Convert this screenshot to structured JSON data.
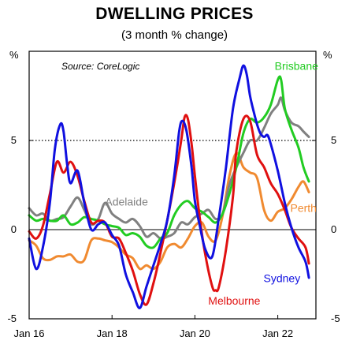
{
  "chart_data": {
    "type": "line",
    "title": "DWELLING PRICES",
    "subtitle": "(3 month % change)",
    "source": "Source: CoreLogic",
    "ylabel_left": "%",
    "ylabel_right": "%",
    "ylim": [
      -5,
      10
    ],
    "yticks": [
      -5,
      0,
      5
    ],
    "xlim": [
      2016.0,
      2022.92
    ],
    "xticks": [
      {
        "x": 2016,
        "label": "Jan 16"
      },
      {
        "x": 2018,
        "label": "Jan 18"
      },
      {
        "x": 2020,
        "label": "Jan 20"
      },
      {
        "x": 2022,
        "label": "Jan 22"
      }
    ],
    "reference_line": 5,
    "colors": {
      "Sydney": "#1010e0",
      "Melbourne": "#e01010",
      "Brisbane": "#22cc22",
      "Perth": "#f08a30",
      "Adelaide": "#808080"
    },
    "series": [
      {
        "name": "Sydney",
        "points": [
          [
            2016.0,
            -0.5
          ],
          [
            2016.17,
            -2.2
          ],
          [
            2016.33,
            -1.0
          ],
          [
            2016.5,
            1.5
          ],
          [
            2016.62,
            4.5
          ],
          [
            2016.75,
            5.9
          ],
          [
            2016.83,
            5.5
          ],
          [
            2016.92,
            3.6
          ],
          [
            2017.0,
            2.6
          ],
          [
            2017.17,
            3.3
          ],
          [
            2017.33,
            1.5
          ],
          [
            2017.5,
            0.0
          ],
          [
            2017.67,
            0.3
          ],
          [
            2017.83,
            0.4
          ],
          [
            2018.0,
            -0.3
          ],
          [
            2018.17,
            -0.9
          ],
          [
            2018.33,
            -2.5
          ],
          [
            2018.5,
            -3.5
          ],
          [
            2018.67,
            -4.4
          ],
          [
            2018.83,
            -3.2
          ],
          [
            2019.0,
            -2.0
          ],
          [
            2019.17,
            -0.8
          ],
          [
            2019.33,
            0.5
          ],
          [
            2019.5,
            3.0
          ],
          [
            2019.62,
            5.5
          ],
          [
            2019.7,
            6.1
          ],
          [
            2019.8,
            5.5
          ],
          [
            2019.92,
            3.5
          ],
          [
            2020.0,
            1.6
          ],
          [
            2020.12,
            0.2
          ],
          [
            2020.25,
            -1.1
          ],
          [
            2020.42,
            -1.5
          ],
          [
            2020.58,
            0.7
          ],
          [
            2020.75,
            3.5
          ],
          [
            2020.92,
            6.8
          ],
          [
            2021.08,
            8.5
          ],
          [
            2021.17,
            9.2
          ],
          [
            2021.25,
            8.7
          ],
          [
            2021.33,
            7.5
          ],
          [
            2021.42,
            6.6
          ],
          [
            2021.5,
            5.9
          ],
          [
            2021.58,
            5.4
          ],
          [
            2021.67,
            5.2
          ],
          [
            2021.75,
            5.3
          ],
          [
            2021.83,
            4.8
          ],
          [
            2022.0,
            3.3
          ],
          [
            2022.17,
            1.5
          ],
          [
            2022.33,
            0.1
          ],
          [
            2022.5,
            -1.0
          ],
          [
            2022.67,
            -1.8
          ],
          [
            2022.75,
            -2.7
          ]
        ]
      },
      {
        "name": "Melbourne",
        "points": [
          [
            2016.0,
            -0.1
          ],
          [
            2016.17,
            -0.5
          ],
          [
            2016.33,
            0.2
          ],
          [
            2016.5,
            2.0
          ],
          [
            2016.67,
            3.8
          ],
          [
            2016.83,
            3.2
          ],
          [
            2017.0,
            3.8
          ],
          [
            2017.17,
            3.0
          ],
          [
            2017.33,
            1.6
          ],
          [
            2017.5,
            0.4
          ],
          [
            2017.67,
            0.5
          ],
          [
            2017.83,
            0.4
          ],
          [
            2018.0,
            -0.4
          ],
          [
            2018.17,
            -0.5
          ],
          [
            2018.33,
            -1.3
          ],
          [
            2018.5,
            -2.3
          ],
          [
            2018.67,
            -3.6
          ],
          [
            2018.83,
            -4.2
          ],
          [
            2019.0,
            -3.0
          ],
          [
            2019.17,
            -1.3
          ],
          [
            2019.33,
            0.5
          ],
          [
            2019.5,
            2.6
          ],
          [
            2019.67,
            5.0
          ],
          [
            2019.75,
            6.3
          ],
          [
            2019.83,
            6.2
          ],
          [
            2019.92,
            4.8
          ],
          [
            2020.0,
            3.0
          ],
          [
            2020.12,
            0.6
          ],
          [
            2020.25,
            -1.4
          ],
          [
            2020.42,
            -3.2
          ],
          [
            2020.5,
            -3.4
          ],
          [
            2020.58,
            -3.2
          ],
          [
            2020.75,
            -1.1
          ],
          [
            2020.92,
            1.9
          ],
          [
            2021.0,
            4.4
          ],
          [
            2021.17,
            6.2
          ],
          [
            2021.33,
            6.1
          ],
          [
            2021.5,
            4.2
          ],
          [
            2021.67,
            3.5
          ],
          [
            2021.83,
            2.6
          ],
          [
            2022.0,
            2.0
          ],
          [
            2022.17,
            1.1
          ],
          [
            2022.33,
            0.1
          ],
          [
            2022.5,
            -0.5
          ],
          [
            2022.67,
            -1.0
          ],
          [
            2022.75,
            -1.9
          ]
        ]
      },
      {
        "name": "Brisbane",
        "points": [
          [
            2016.0,
            0.8
          ],
          [
            2016.17,
            0.5
          ],
          [
            2016.33,
            0.6
          ],
          [
            2016.5,
            0.5
          ],
          [
            2016.67,
            0.5
          ],
          [
            2016.83,
            0.8
          ],
          [
            2017.0,
            0.3
          ],
          [
            2017.17,
            0.4
          ],
          [
            2017.33,
            0.7
          ],
          [
            2017.5,
            0.6
          ],
          [
            2017.67,
            0.5
          ],
          [
            2017.83,
            0.3
          ],
          [
            2018.0,
            0.2
          ],
          [
            2018.17,
            0.1
          ],
          [
            2018.33,
            -0.3
          ],
          [
            2018.5,
            -0.2
          ],
          [
            2018.67,
            -0.4
          ],
          [
            2018.83,
            -0.9
          ],
          [
            2019.0,
            -1.0
          ],
          [
            2019.17,
            -0.5
          ],
          [
            2019.33,
            -0.2
          ],
          [
            2019.5,
            0.8
          ],
          [
            2019.67,
            1.4
          ],
          [
            2019.83,
            1.6
          ],
          [
            2020.0,
            1.2
          ],
          [
            2020.17,
            1.0
          ],
          [
            2020.33,
            0.7
          ],
          [
            2020.5,
            0.4
          ],
          [
            2020.67,
            0.9
          ],
          [
            2020.83,
            2.0
          ],
          [
            2021.0,
            3.5
          ],
          [
            2021.17,
            5.4
          ],
          [
            2021.33,
            6.2
          ],
          [
            2021.5,
            6.0
          ],
          [
            2021.67,
            6.3
          ],
          [
            2021.83,
            7.0
          ],
          [
            2022.0,
            8.4
          ],
          [
            2022.08,
            8.4
          ],
          [
            2022.17,
            6.8
          ],
          [
            2022.33,
            5.6
          ],
          [
            2022.5,
            4.6
          ],
          [
            2022.62,
            3.5
          ],
          [
            2022.75,
            2.7
          ]
        ]
      },
      {
        "name": "Perth",
        "points": [
          [
            2016.0,
            -0.6
          ],
          [
            2016.17,
            -0.9
          ],
          [
            2016.33,
            -1.6
          ],
          [
            2016.5,
            -1.7
          ],
          [
            2016.67,
            -1.5
          ],
          [
            2016.83,
            -1.5
          ],
          [
            2017.0,
            -1.4
          ],
          [
            2017.17,
            -1.8
          ],
          [
            2017.33,
            -1.7
          ],
          [
            2017.5,
            -0.6
          ],
          [
            2017.67,
            -0.5
          ],
          [
            2017.83,
            -0.6
          ],
          [
            2018.0,
            -0.7
          ],
          [
            2018.17,
            -1.0
          ],
          [
            2018.33,
            -1.4
          ],
          [
            2018.5,
            -1.6
          ],
          [
            2018.67,
            -2.2
          ],
          [
            2018.83,
            -2.0
          ],
          [
            2019.0,
            -2.2
          ],
          [
            2019.17,
            -1.8
          ],
          [
            2019.33,
            -1.0
          ],
          [
            2019.5,
            -0.8
          ],
          [
            2019.67,
            -1.0
          ],
          [
            2019.83,
            -0.5
          ],
          [
            2020.0,
            0.2
          ],
          [
            2020.17,
            0.4
          ],
          [
            2020.33,
            -0.4
          ],
          [
            2020.5,
            -0.6
          ],
          [
            2020.67,
            0.8
          ],
          [
            2020.83,
            3.0
          ],
          [
            2021.0,
            4.3
          ],
          [
            2021.17,
            3.5
          ],
          [
            2021.33,
            3.2
          ],
          [
            2021.5,
            2.9
          ],
          [
            2021.67,
            1.1
          ],
          [
            2021.83,
            0.5
          ],
          [
            2022.0,
            1.0
          ],
          [
            2022.17,
            1.2
          ],
          [
            2022.33,
            1.7
          ],
          [
            2022.5,
            2.4
          ],
          [
            2022.62,
            2.7
          ],
          [
            2022.75,
            2.1
          ]
        ]
      },
      {
        "name": "Adelaide",
        "points": [
          [
            2016.0,
            1.2
          ],
          [
            2016.17,
            0.8
          ],
          [
            2016.33,
            0.9
          ],
          [
            2016.5,
            0.5
          ],
          [
            2016.67,
            0.6
          ],
          [
            2016.83,
            0.7
          ],
          [
            2017.0,
            1.3
          ],
          [
            2017.17,
            1.8
          ],
          [
            2017.33,
            1.1
          ],
          [
            2017.5,
            0.3
          ],
          [
            2017.67,
            0.6
          ],
          [
            2017.83,
            1.5
          ],
          [
            2018.0,
            0.9
          ],
          [
            2018.17,
            0.6
          ],
          [
            2018.33,
            0.4
          ],
          [
            2018.5,
            0.6
          ],
          [
            2018.67,
            0.2
          ],
          [
            2018.83,
            -0.4
          ],
          [
            2019.0,
            -0.2
          ],
          [
            2019.17,
            -0.5
          ],
          [
            2019.33,
            -0.4
          ],
          [
            2019.5,
            -0.2
          ],
          [
            2019.67,
            0.4
          ],
          [
            2019.83,
            0.3
          ],
          [
            2020.0,
            0.7
          ],
          [
            2020.17,
            0.9
          ],
          [
            2020.33,
            1.1
          ],
          [
            2020.5,
            0.6
          ],
          [
            2020.67,
            0.9
          ],
          [
            2020.83,
            2.5
          ],
          [
            2021.0,
            3.5
          ],
          [
            2021.17,
            4.3
          ],
          [
            2021.33,
            5.0
          ],
          [
            2021.5,
            5.0
          ],
          [
            2021.67,
            5.7
          ],
          [
            2021.83,
            6.5
          ],
          [
            2022.0,
            7.0
          ],
          [
            2022.08,
            7.4
          ],
          [
            2022.17,
            6.7
          ],
          [
            2022.33,
            6.0
          ],
          [
            2022.5,
            5.8
          ],
          [
            2022.62,
            5.5
          ],
          [
            2022.75,
            5.2
          ]
        ]
      }
    ],
    "labels": [
      {
        "series": "Brisbane",
        "text": "Brisbane"
      },
      {
        "series": "Adelaide",
        "text": "Adelaide"
      },
      {
        "series": "Perth",
        "text": "Perth"
      },
      {
        "series": "Sydney",
        "text": "Sydney"
      },
      {
        "series": "Melbourne",
        "text": "Melbourne"
      }
    ]
  }
}
